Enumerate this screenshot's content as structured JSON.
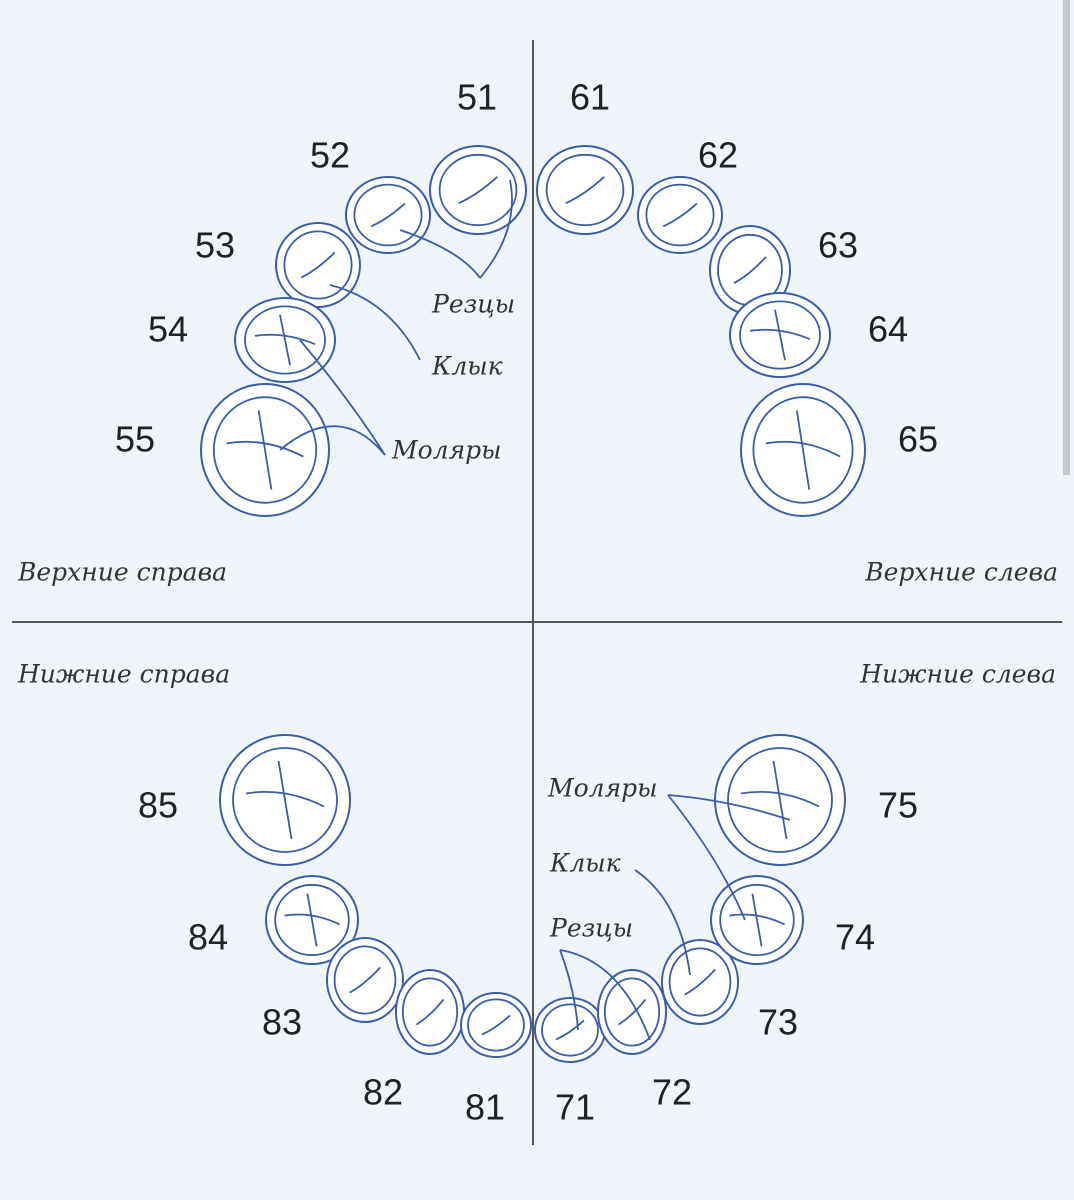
{
  "quadrants": [
    {
      "label": "Верхние справа"
    },
    {
      "label": "Верхние слева"
    },
    {
      "label": "Нижние справа"
    },
    {
      "label": "Нижние слева"
    }
  ],
  "teeth": [
    {
      "label": "51"
    },
    {
      "label": "52"
    },
    {
      "label": "53"
    },
    {
      "label": "54"
    },
    {
      "label": "55"
    },
    {
      "label": "61"
    },
    {
      "label": "62"
    },
    {
      "label": "63"
    },
    {
      "label": "64"
    },
    {
      "label": "65"
    },
    {
      "label": "85"
    },
    {
      "label": "84"
    },
    {
      "label": "83"
    },
    {
      "label": "82"
    },
    {
      "label": "81"
    },
    {
      "label": "71"
    },
    {
      "label": "72"
    },
    {
      "label": "73"
    },
    {
      "label": "74"
    },
    {
      "label": "75"
    }
  ],
  "annotations": [
    {
      "label": "Резцы"
    },
    {
      "label": "Клык"
    },
    {
      "label": "Моляры"
    },
    {
      "label": "Моляры"
    },
    {
      "label": "Клык"
    },
    {
      "label": "Резцы"
    }
  ]
}
